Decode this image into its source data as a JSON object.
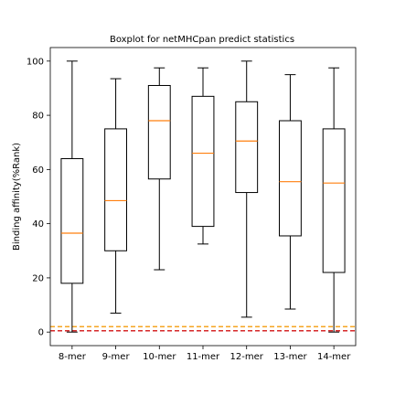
{
  "chart_data": {
    "type": "box",
    "title": "Boxplot for netMHCpan predict statistics",
    "xlabel": "",
    "ylabel": "Binding affinity(%Rank)",
    "ylim": [
      -5,
      105
    ],
    "yticks": [
      0,
      20,
      40,
      60,
      80,
      100
    ],
    "grid": false,
    "categories": [
      "8-mer",
      "9-mer",
      "10-mer",
      "11-mer",
      "12-mer",
      "13-mer",
      "14-mer"
    ],
    "boxes": [
      {
        "whisker_low": 0,
        "q1": 18,
        "median": 36.5,
        "q3": 64,
        "whisker_high": 100
      },
      {
        "whisker_low": 7,
        "q1": 30,
        "median": 48.5,
        "q3": 75,
        "whisker_high": 93.5
      },
      {
        "whisker_low": 23,
        "q1": 56.5,
        "median": 78,
        "q3": 91,
        "whisker_high": 97.5
      },
      {
        "whisker_low": 32.5,
        "q1": 39,
        "median": 66,
        "q3": 87,
        "whisker_high": 97.5
      },
      {
        "whisker_low": 5.5,
        "q1": 51.5,
        "median": 70.5,
        "q3": 85,
        "whisker_high": 100
      },
      {
        "whisker_low": 8.5,
        "q1": 35.5,
        "median": 55.5,
        "q3": 78,
        "whisker_high": 95
      },
      {
        "whisker_low": 0,
        "q1": 22,
        "median": 55,
        "q3": 75,
        "whisker_high": 97.5
      }
    ],
    "reference_lines": [
      {
        "y": 2,
        "color": "#f5a623",
        "style": "dashed"
      },
      {
        "y": 0.5,
        "color": "#d62728",
        "style": "dashed"
      }
    ],
    "colors": {
      "box": "#000000",
      "median": "#ff7f0e"
    }
  }
}
